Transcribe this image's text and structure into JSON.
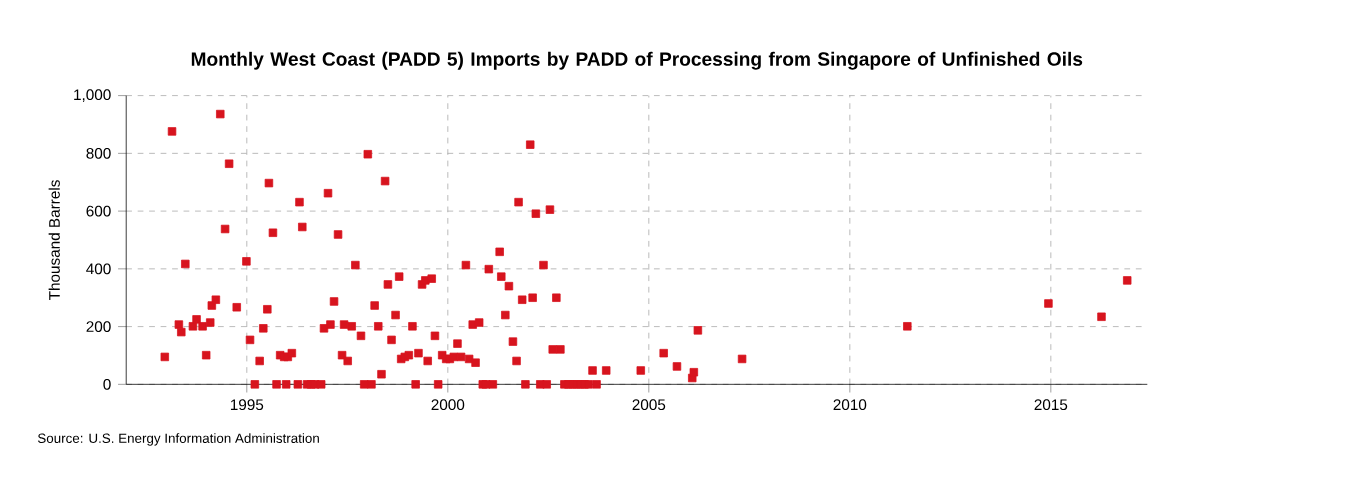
{
  "chart_data": {
    "type": "scatter",
    "title": "Monthly West Coast (PADD 5) Imports by PADD of Processing from Singapore of Unfinished Oils",
    "ylabel": "Thousand Barrels",
    "annotations": [
      "Source: U.S. Energy Information Administration"
    ],
    "series": [
      {
        "color": "#d7141e",
        "x": [
          1992.96,
          1993.14,
          1993.31,
          1993.37,
          1993.47,
          1993.66,
          1993.75,
          1993.9,
          1993.99,
          1994.09,
          1994.13,
          1994.23,
          1994.34,
          1994.46,
          1994.56,
          1994.75,
          1994.99,
          1995.08,
          1995.2,
          1995.32,
          1995.41,
          1995.51,
          1995.55,
          1995.65,
          1995.74,
          1995.83,
          1995.93,
          1995.98,
          1996.02,
          1996.12,
          1996.27,
          1996.31,
          1996.38,
          1996.5,
          1996.6,
          1996.7,
          1996.85,
          1996.92,
          1997.02,
          1997.08,
          1997.17,
          1997.27,
          1997.37,
          1997.42,
          1997.51,
          1997.61,
          1997.7,
          1997.84,
          1997.92,
          1998.01,
          1998.1,
          1998.18,
          1998.27,
          1998.35,
          1998.44,
          1998.51,
          1998.6,
          1998.7,
          1998.79,
          1998.84,
          1998.93,
          1999.03,
          1999.12,
          1999.2,
          1999.27,
          1999.36,
          1999.44,
          1999.5,
          1999.6,
          1999.68,
          1999.76,
          1999.86,
          1999.96,
          2000.05,
          2000.15,
          2000.24,
          2000.33,
          2000.45,
          2000.53,
          2000.62,
          2000.69,
          2000.78,
          2000.87,
          2000.95,
          2001.02,
          2001.12,
          2001.29,
          2001.33,
          2001.43,
          2001.52,
          2001.62,
          2001.71,
          2001.76,
          2001.85,
          2001.93,
          2002.05,
          2002.11,
          2002.19,
          2002.3,
          2002.38,
          2002.46,
          2002.54,
          2002.61,
          2002.7,
          2002.8,
          2002.9,
          2003.0,
          2003.1,
          2003.2,
          2003.3,
          2003.4,
          2003.5,
          2003.6,
          2003.7,
          2003.94,
          2004.8,
          2005.37,
          2005.7,
          2006.08,
          2006.12,
          2006.22,
          2007.32,
          2011.43,
          2014.94,
          2016.26,
          2016.9
        ],
        "values": [
          95,
          876,
          207,
          181,
          417,
          201,
          225,
          201,
          101,
          214,
          273,
          293,
          936,
          538,
          764,
          267,
          426,
          154,
          0,
          81,
          194,
          260,
          697,
          525,
          0,
          101,
          95,
          0,
          95,
          108,
          0,
          631,
          545,
          0,
          0,
          0,
          0,
          194,
          662,
          207,
          287,
          519,
          101,
          207,
          81,
          201,
          413,
          168,
          0,
          797,
          0,
          273,
          201,
          35,
          704,
          346,
          154,
          240,
          373,
          88,
          95,
          101,
          201,
          0,
          108,
          346,
          360,
          81,
          366,
          168,
          0,
          101,
          88,
          88,
          95,
          141,
          95,
          413,
          88,
          207,
          75,
          214,
          0,
          0,
          399,
          0,
          459,
          373,
          240,
          340,
          148,
          81,
          631,
          293,
          0,
          830,
          300,
          591,
          0,
          413,
          0,
          605,
          121,
          300,
          121,
          0,
          0,
          0,
          0,
          0,
          0,
          0,
          48,
          0,
          48,
          48,
          108,
          62,
          22,
          42,
          187,
          88,
          201,
          280,
          234,
          360
        ]
      }
    ],
    "xlim": [
      1992,
      2017.4
    ],
    "xticks": [
      1995,
      2000,
      2005,
      2010,
      2015
    ],
    "ylim": [
      0,
      1000
    ],
    "yticks": [
      0,
      {
        "value": 200,
        "label": "200"
      },
      400,
      600,
      800,
      {
        "value": 1000,
        "label": "1,000"
      }
    ],
    "grid": true,
    "marker": "square"
  }
}
